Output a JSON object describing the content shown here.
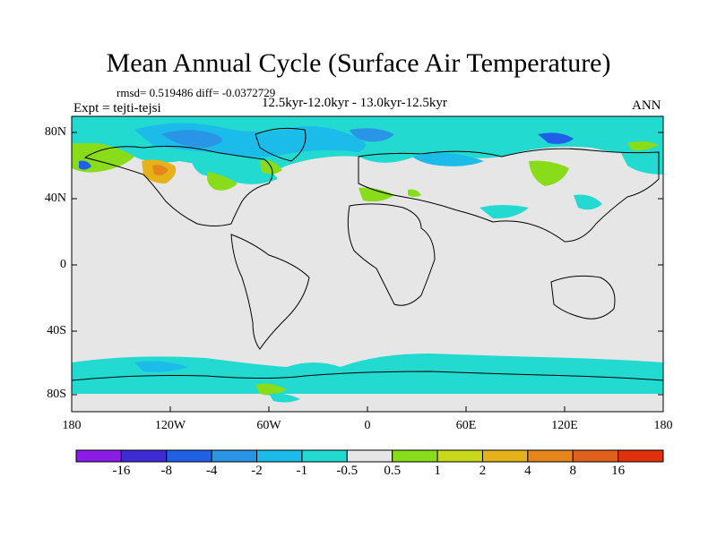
{
  "title": "Mean Annual Cycle (Surface Air Temperature)",
  "stats": "rmsd= 0.519486 diff= -0.0372729",
  "period": "12.5kyr-12.0kyr - 13.0kyr-12.5kyr",
  "experiment": "Expt = tejti-tejsi",
  "season": "ANN",
  "latitude_labels": [
    "80N",
    "40N",
    "0",
    "40S",
    "80S"
  ],
  "longitude_labels": [
    "180",
    "120W",
    "60W",
    "0",
    "60E",
    "120E",
    "180"
  ],
  "colorbar": {
    "labels": [
      "-16",
      "-8",
      "-4",
      "-2",
      "-1",
      "-0.5",
      "0.5",
      "1",
      "2",
      "4",
      "8",
      "16"
    ],
    "colors": [
      "#8b1be6",
      "#3f2bd6",
      "#1f60e6",
      "#2a95e6",
      "#1cbcea",
      "#22dad0",
      "#e6e6e6",
      "#88dc1a",
      "#c8d81a",
      "#e6b21a",
      "#e6851a",
      "#e0601c",
      "#e0300c"
    ]
  },
  "map_colors": {
    "ocean_land_background": "#e6e6e6",
    "coast": "#000000"
  }
}
